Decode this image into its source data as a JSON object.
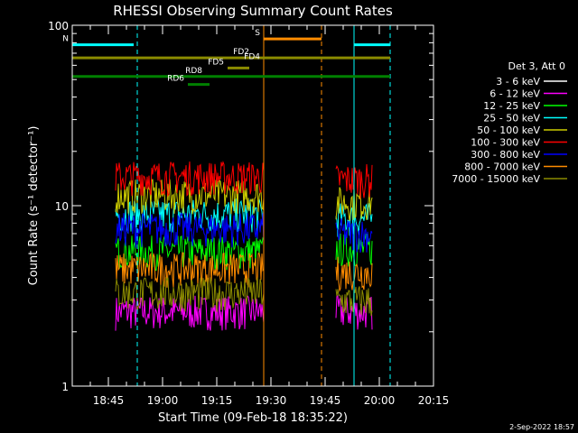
{
  "chart_data": {
    "type": "line",
    "title": "RHESSI Observing Summary Count Rates",
    "xlabel": "Start Time (09-Feb-18 18:35:22)",
    "ylabel": "Count Rate (s⁻¹ detector⁻¹)",
    "y_scale": "log",
    "ylim": [
      1,
      100
    ],
    "xlim": [
      "18:35",
      "20:15"
    ],
    "x_ticks": [
      "18:45",
      "19:00",
      "19:15",
      "19:30",
      "19:45",
      "20:00",
      "20:15"
    ],
    "y_ticks": [
      "1",
      "10",
      "100"
    ],
    "legend": {
      "title": "Det 3, Att 0",
      "placement": "right"
    },
    "series": [
      {
        "name": "3 - 6 keV",
        "color": "#ffffff",
        "level": [
          1.0,
          1.0
        ]
      },
      {
        "name": "6 - 12 keV",
        "color": "#ff00ff",
        "level": [
          2.6,
          2.6
        ]
      },
      {
        "name": "12 - 25 keV",
        "color": "#00ff00",
        "level": [
          5.6,
          5.8
        ]
      },
      {
        "name": "25 - 50 keV",
        "color": "#00ffff",
        "level": [
          9.0,
          8.5
        ]
      },
      {
        "name": "50 - 100 keV",
        "color": "#cccc00",
        "level": [
          11.5,
          10.5
        ]
      },
      {
        "name": "100 - 300 keV",
        "color": "#ff0000",
        "level": [
          14.5,
          14.0
        ]
      },
      {
        "name": "300 - 800 keV",
        "color": "#0000ff",
        "level": [
          7.5,
          7.0
        ]
      },
      {
        "name": "800 - 7000 keV",
        "color": "#ff8c00",
        "level": [
          4.5,
          4.3
        ]
      },
      {
        "name": "7000 - 15000 keV",
        "color": "#8b8b00",
        "level": [
          3.3,
          3.0
        ]
      }
    ],
    "data_intervals": [
      {
        "start": "18:47",
        "end": "19:28"
      },
      {
        "start": "19:48",
        "end": "19:58"
      }
    ],
    "flags": [
      {
        "label": "N",
        "color": "#00ffff",
        "y": 78,
        "segments": [
          [
            "18:35",
            "18:52"
          ],
          [
            "19:53",
            "20:03"
          ]
        ]
      },
      {
        "label": "S",
        "color": "#ff8c00",
        "y": 84,
        "segments": [
          [
            "19:28",
            "19:44"
          ]
        ]
      },
      {
        "label": "FD2",
        "color": "#8b8b00",
        "y": 66,
        "segments": [
          [
            "18:35",
            "20:03"
          ]
        ]
      },
      {
        "label": "FD4",
        "color": "#8b8b00",
        "y": 62,
        "segments": []
      },
      {
        "label": "FD5",
        "color": "#8b8b00",
        "y": 58,
        "segments": [
          [
            "19:18",
            "19:24"
          ]
        ]
      },
      {
        "label": "RD8",
        "color": "#008000",
        "y": 52,
        "segments": [
          [
            "18:35",
            "20:03"
          ]
        ]
      },
      {
        "label": "RD6",
        "color": "#008000",
        "y": 47,
        "segments": [
          [
            "19:07",
            "19:13"
          ]
        ]
      }
    ],
    "vlines": [
      {
        "time": "18:53",
        "color": "#00ffff",
        "style": "dashed"
      },
      {
        "time": "19:53",
        "color": "#00ffff",
        "style": "solid"
      },
      {
        "time": "20:03",
        "color": "#00ffff",
        "style": "dashed"
      },
      {
        "time": "19:28",
        "color": "#ff8c00",
        "style": "solid"
      },
      {
        "time": "19:44",
        "color": "#ff8c00",
        "style": "dashed"
      }
    ]
  },
  "footer_date": "2-Sep-2022 18:57"
}
